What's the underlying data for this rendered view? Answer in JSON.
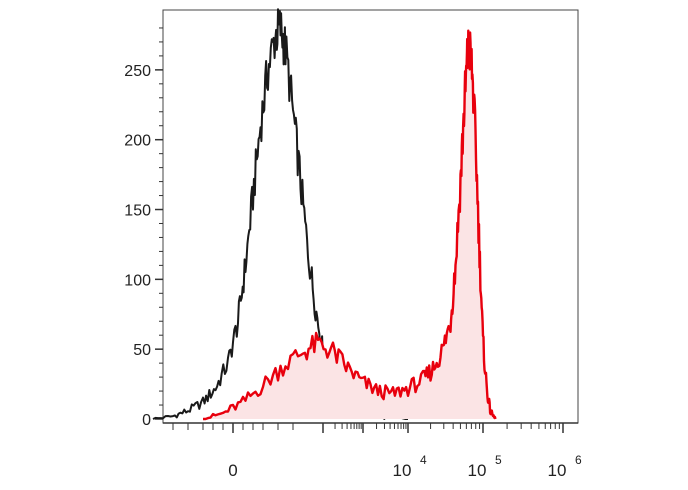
{
  "chart_data": {
    "type": "area",
    "title": "",
    "xlabel": "",
    "ylabel": "",
    "x_scale": "biexponential",
    "x_tick_labels": [
      {
        "base": "0",
        "exp": ""
      },
      {
        "base": "10",
        "exp": "4"
      },
      {
        "base": "10",
        "exp": "5"
      },
      {
        "base": "10",
        "exp": "6"
      }
    ],
    "y_tick_labels": [
      "0",
      "50",
      "100",
      "150",
      "200",
      "250"
    ],
    "ylim": [
      0,
      290
    ],
    "grid": false,
    "legend": "none",
    "series": [
      {
        "color": "#1a1a1a",
        "fill": "none",
        "points": [
          [
            -1.6,
            0
          ],
          [
            -1.2,
            2
          ],
          [
            -0.9,
            6
          ],
          [
            -0.6,
            12
          ],
          [
            -0.35,
            22
          ],
          [
            -0.1,
            40
          ],
          [
            0.1,
            70
          ],
          [
            0.25,
            110
          ],
          [
            0.4,
            160
          ],
          [
            0.55,
            210
          ],
          [
            0.7,
            250
          ],
          [
            0.85,
            275
          ],
          [
            0.95,
            280
          ],
          [
            1.05,
            265
          ],
          [
            1.2,
            220
          ],
          [
            1.35,
            170
          ],
          [
            1.5,
            120
          ],
          [
            1.65,
            80
          ],
          [
            1.8,
            48
          ],
          [
            1.95,
            28
          ],
          [
            2.1,
            16
          ],
          [
            2.3,
            8
          ],
          [
            2.55,
            4
          ],
          [
            2.8,
            2
          ],
          [
            3.1,
            1
          ],
          [
            3.5,
            0
          ]
        ]
      },
      {
        "color": "#e8000d",
        "fill": "#fbe4e5",
        "points": [
          [
            -0.6,
            0
          ],
          [
            -0.2,
            4
          ],
          [
            0.2,
            12
          ],
          [
            0.6,
            24
          ],
          [
            1.0,
            38
          ],
          [
            1.4,
            48
          ],
          [
            1.7,
            54
          ],
          [
            2.0,
            48
          ],
          [
            2.3,
            36
          ],
          [
            2.6,
            26
          ],
          [
            2.9,
            20
          ],
          [
            3.2,
            18
          ],
          [
            3.5,
            22
          ],
          [
            3.8,
            28
          ],
          [
            4.0,
            36
          ],
          [
            4.2,
            50
          ],
          [
            4.35,
            70
          ],
          [
            4.45,
            110
          ],
          [
            4.55,
            170
          ],
          [
            4.62,
            220
          ],
          [
            4.68,
            255
          ],
          [
            4.72,
            268
          ],
          [
            4.78,
            250
          ],
          [
            4.85,
            200
          ],
          [
            4.93,
            120
          ],
          [
            5.0,
            55
          ],
          [
            5.08,
            20
          ],
          [
            5.15,
            5
          ],
          [
            5.25,
            0
          ]
        ]
      }
    ]
  }
}
